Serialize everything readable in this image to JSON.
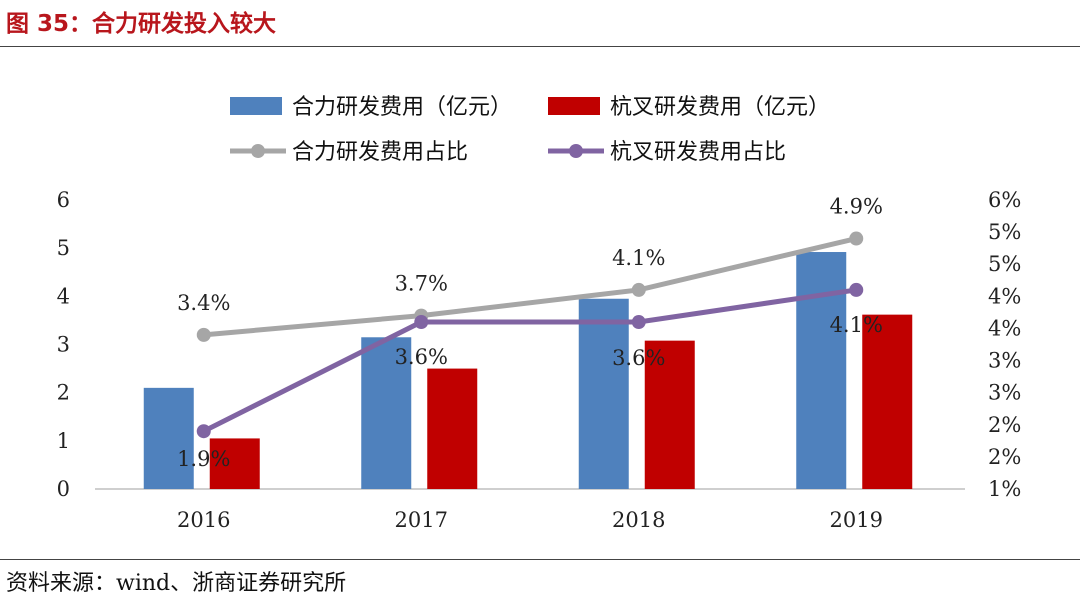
{
  "header": {
    "title": "图 35：合力研发投入较大"
  },
  "footer": {
    "source": "资料来源：wind、浙商证券研究所"
  },
  "colors": {
    "title": "#b8161c",
    "heli_bar": "#4f81bd",
    "hangcha_bar": "#c00000",
    "heli_line": "#a6a6a6",
    "hangcha_line": "#8064a2"
  },
  "chart_data": {
    "type": "bar",
    "categories": [
      "2016",
      "2017",
      "2018",
      "2019"
    ],
    "series": [
      {
        "name": "合力研发费用（亿元）",
        "kind": "bar",
        "axis": "left",
        "values": [
          2.1,
          3.15,
          3.95,
          4.92
        ]
      },
      {
        "name": "杭叉研发费用（亿元）",
        "kind": "bar",
        "axis": "left",
        "values": [
          1.05,
          2.5,
          3.08,
          3.62
        ]
      },
      {
        "name": "合力研发费用占比",
        "kind": "line",
        "axis": "right",
        "values": [
          3.4,
          3.7,
          4.1,
          4.9
        ],
        "labels": [
          "3.4%",
          "3.7%",
          "4.1%",
          "4.9%"
        ]
      },
      {
        "name": "杭叉研发费用占比",
        "kind": "line",
        "axis": "right",
        "values": [
          1.9,
          3.6,
          3.6,
          4.1
        ],
        "labels": [
          "1.9%",
          "3.6%",
          "3.6%",
          "4.1%"
        ]
      }
    ],
    "y_left": {
      "range": [
        0,
        6
      ],
      "ticks": [
        "0",
        "1",
        "2",
        "3",
        "4",
        "5",
        "6"
      ]
    },
    "y_right": {
      "range": [
        1,
        5.5
      ],
      "ticks": [
        "1%",
        "2%",
        "2%",
        "3%",
        "3%",
        "4%",
        "4%",
        "5%",
        "5%",
        "6%"
      ]
    },
    "legend_position": "top",
    "grid": false
  }
}
